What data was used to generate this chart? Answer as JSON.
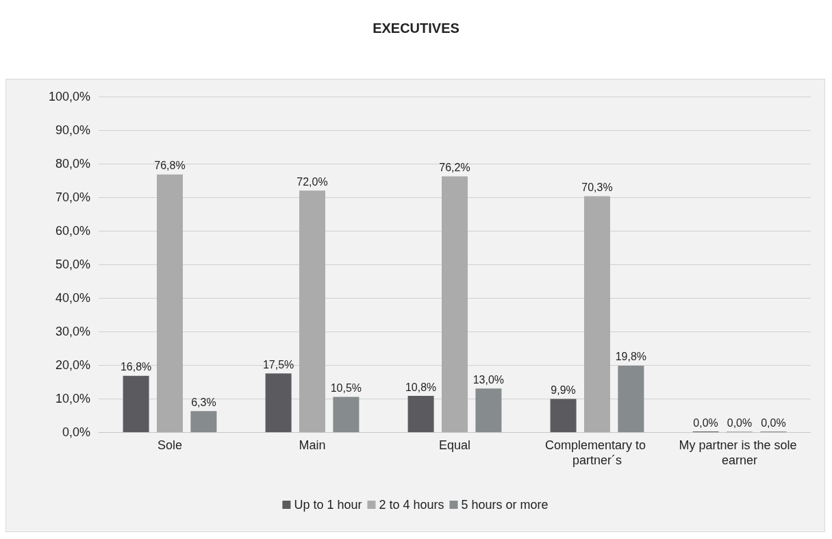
{
  "chart_data": {
    "type": "bar",
    "title": "EXECUTIVES",
    "categories": [
      "Sole",
      "Main",
      "Equal",
      "Complementary to partner´s",
      "My partner is the sole earner"
    ],
    "series": [
      {
        "name": "Up to 1 hour",
        "color": "#5b5b5f",
        "values": [
          16.8,
          17.5,
          10.8,
          9.9,
          0
        ],
        "value_labels": [
          "16,8%",
          "17,5%",
          "10,8%",
          "9,9%",
          "0,0%"
        ]
      },
      {
        "name": "2 to 4 hours",
        "color": "#ababab",
        "values": [
          76.8,
          72.0,
          76.2,
          70.3,
          0
        ],
        "value_labels": [
          "76,8%",
          "72,0%",
          "76,2%",
          "70,3%",
          "0,0%"
        ]
      },
      {
        "name": "5 hours or more",
        "color": "#868b8d",
        "values": [
          6.3,
          10.5,
          13.0,
          19.8,
          0
        ],
        "value_labels": [
          "6,3%",
          "10,5%",
          "13,0%",
          "19,8%",
          "0,0%"
        ]
      }
    ],
    "ylim": [
      0,
      100
    ],
    "yticks": [
      {
        "value": 0,
        "label": "0,0%"
      },
      {
        "value": 10,
        "label": "10,0%"
      },
      {
        "value": 20,
        "label": "20,0%"
      },
      {
        "value": 30,
        "label": "30,0%"
      },
      {
        "value": 40,
        "label": "40,0%"
      },
      {
        "value": 50,
        "label": "50,0%"
      },
      {
        "value": 60,
        "label": "60,0%"
      },
      {
        "value": 70,
        "label": "70,0%"
      },
      {
        "value": 80,
        "label": "80,0%"
      },
      {
        "value": 90,
        "label": "90,0%"
      },
      {
        "value": 100,
        "label": "100,0%"
      }
    ],
    "grid": "y",
    "legend": "bottom"
  }
}
